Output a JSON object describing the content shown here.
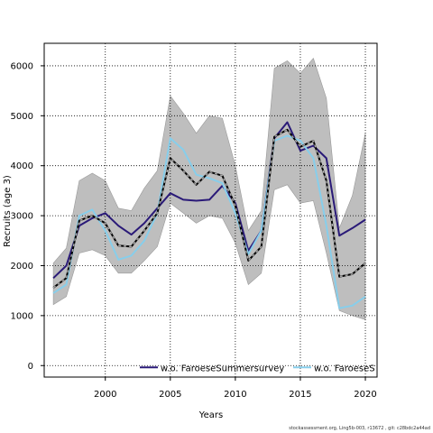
{
  "chart_data": {
    "type": "line",
    "xlabel": "Years",
    "ylabel": "Recruits (age 3)",
    "xlim": [
      1995.3,
      2020.9
    ],
    "ylim": [
      -230,
      6450
    ],
    "xticks": [
      2000,
      2005,
      2010,
      2015,
      2020
    ],
    "yticks": [
      0,
      1000,
      2000,
      3000,
      4000,
      5000,
      6000
    ],
    "grid": true,
    "legend_position": "bottom",
    "x": [
      1996,
      1997,
      1998,
      1999,
      2000,
      2001,
      2002,
      2003,
      2004,
      2005,
      2006,
      2007,
      2008,
      2009,
      2010,
      2011,
      2012,
      2013,
      2014,
      2015,
      2016,
      2017,
      2018,
      2019,
      2020
    ],
    "band": {
      "upper": [
        2050,
        2350,
        3700,
        3850,
        3700,
        3150,
        3100,
        3550,
        3900,
        5400,
        5050,
        4650,
        5000,
        4950,
        4000,
        2700,
        3100,
        5950,
        6100,
        5850,
        6150,
        5350,
        2750,
        3400,
        4650
      ],
      "lower": [
        1220,
        1380,
        2250,
        2320,
        2200,
        1850,
        1850,
        2100,
        2380,
        3250,
        3050,
        2850,
        3000,
        2950,
        2450,
        1620,
        1850,
        3520,
        3620,
        3250,
        3300,
        2250,
        1100,
        1000,
        920
      ],
      "color": "#bebebe"
    },
    "series": [
      {
        "name": "",
        "style": "solid",
        "color": "#000000",
        "values": [
          1560,
          1750,
          2900,
          3000,
          2850,
          2400,
          2380,
          2700,
          3050,
          4150,
          3900,
          3620,
          3880,
          3800,
          3200,
          2100,
          2380,
          4580,
          4720,
          4380,
          4500,
          3700,
          1780,
          1830,
          2050
        ]
      },
      {
        "name": "",
        "style": "dashed",
        "color": "#aaaaaa",
        "values": [
          1560,
          1750,
          2900,
          3000,
          2850,
          2400,
          2380,
          2700,
          3050,
          4150,
          3900,
          3620,
          3880,
          3800,
          3200,
          2100,
          2380,
          4580,
          4720,
          4380,
          4500,
          3700,
          1780,
          1830,
          2050
        ]
      },
      {
        "name": "w.o. FaroeseSummersurvey",
        "style": "solid",
        "color": "#2a1a78",
        "values": [
          1750,
          2000,
          2800,
          2950,
          3050,
          2800,
          2620,
          2850,
          3150,
          3450,
          3320,
          3300,
          3320,
          3600,
          3250,
          2300,
          2700,
          4550,
          4870,
          4300,
          4400,
          4150,
          2600,
          2750,
          2920
        ]
      },
      {
        "name": "w.o. FaroeseS",
        "style": "solid",
        "color": "#87ceeb",
        "values": [
          1450,
          1620,
          3000,
          3120,
          2700,
          2120,
          2200,
          2500,
          3050,
          4550,
          4320,
          3820,
          3750,
          3650,
          3050,
          2230,
          2700,
          4500,
          4600,
          4500,
          4150,
          2800,
          1150,
          1200,
          1380
        ]
      }
    ]
  },
  "footer": "stockassessment.org, Ling5b-003, r13672 , git: c28bdc2a44ad"
}
